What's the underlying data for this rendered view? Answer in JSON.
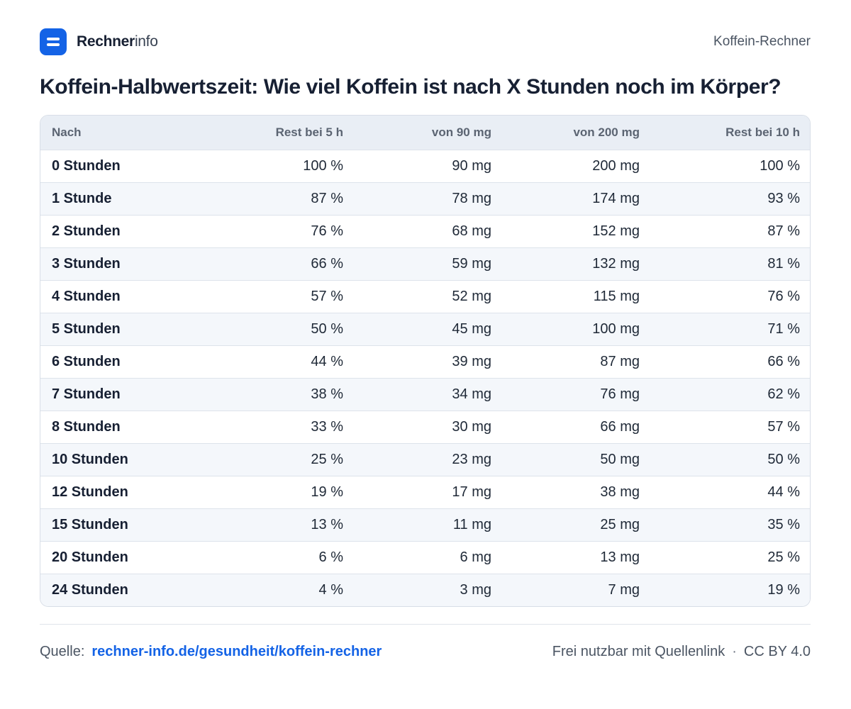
{
  "header": {
    "brand_bold": "Rechner",
    "brand_light": "info",
    "logo_icon": "menu-lines-icon",
    "logo_color": "#1463e6",
    "right_label": "Koffein-Rechner"
  },
  "title": "Koffein-Halbwertszeit: Wie viel Koffein ist nach X Stunden noch im Körper?",
  "table": {
    "columns": [
      "Nach",
      "Rest bei 5 h",
      "von 90 mg",
      "von 200 mg",
      "Rest bei 10 h"
    ],
    "rows": [
      [
        "0 Stunden",
        "100 %",
        "90 mg",
        "200 mg",
        "100 %"
      ],
      [
        "1 Stunde",
        "87 %",
        "78 mg",
        "174 mg",
        "93 %"
      ],
      [
        "2 Stunden",
        "76 %",
        "68 mg",
        "152 mg",
        "87 %"
      ],
      [
        "3 Stunden",
        "66 %",
        "59 mg",
        "132 mg",
        "81 %"
      ],
      [
        "4 Stunden",
        "57 %",
        "52 mg",
        "115 mg",
        "76 %"
      ],
      [
        "5 Stunden",
        "50 %",
        "45 mg",
        "100 mg",
        "71 %"
      ],
      [
        "6 Stunden",
        "44 %",
        "39 mg",
        "87 mg",
        "66 %"
      ],
      [
        "7 Stunden",
        "38 %",
        "34 mg",
        "76 mg",
        "62 %"
      ],
      [
        "8 Stunden",
        "33 %",
        "30 mg",
        "66 mg",
        "57 %"
      ],
      [
        "10 Stunden",
        "25 %",
        "23 mg",
        "50 mg",
        "50 %"
      ],
      [
        "12 Stunden",
        "19 %",
        "17 mg",
        "38 mg",
        "44 %"
      ],
      [
        "15 Stunden",
        "13 %",
        "11 mg",
        "25 mg",
        "35 %"
      ],
      [
        "20 Stunden",
        "6 %",
        "6 mg",
        "13 mg",
        "25 %"
      ],
      [
        "24 Stunden",
        "4 %",
        "3 mg",
        "7 mg",
        "19 %"
      ]
    ]
  },
  "footer": {
    "source_label": "Quelle:",
    "source_link": "rechner-info.de/gesundheit/koffein-rechner",
    "license_text": "Frei nutzbar mit Quellenlink",
    "separator": "·",
    "license": "CC BY 4.0"
  }
}
